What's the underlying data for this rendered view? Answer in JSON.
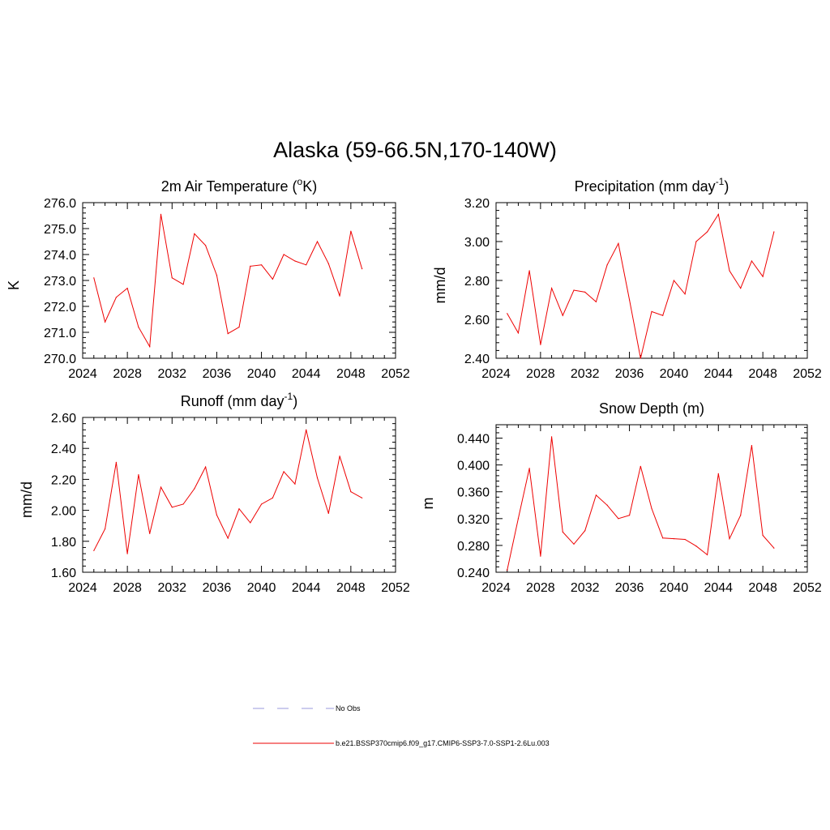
{
  "page": {
    "title": "Alaska (59-66.5N,170-140W)"
  },
  "legend": {
    "items": [
      {
        "label": "No Obs",
        "color": "#9999dd",
        "dash": true
      },
      {
        "label": "b.e21.BSSP370cmip6.f09_g17.CMIP6-SSP3-7.0-SSP1-2.6Lu.003",
        "color": "#ee0000",
        "dash": false
      }
    ]
  },
  "chart_data": [
    {
      "type": "line",
      "title": "2m Air Temperature (oK)",
      "title_parts": {
        "base": "2m Air Temperature (",
        "sup": "o",
        "tail": "K)"
      },
      "xlabel": "",
      "ylabel": "K",
      "xlim": [
        2024,
        2052
      ],
      "ylim": [
        270.0,
        276.0
      ],
      "xticks": [
        2024,
        2028,
        2032,
        2036,
        2040,
        2044,
        2048,
        2052
      ],
      "xtick_labels": [
        "2024",
        "2028",
        "2032",
        "2036",
        "2040",
        "2044",
        "2048",
        "2052"
      ],
      "yticks": [
        270.0,
        271.0,
        272.0,
        273.0,
        274.0,
        275.0,
        276.0
      ],
      "ytick_labels": [
        "270.0",
        "271.0",
        "272.0",
        "273.0",
        "274.0",
        "275.0",
        "276.0"
      ],
      "grid": false,
      "series": [
        {
          "color": "#ee0000",
          "x": [
            2025,
            2026,
            2027,
            2028,
            2029,
            2030,
            2031,
            2032,
            2033,
            2034,
            2035,
            2036,
            2037,
            2038,
            2039,
            2040,
            2041,
            2042,
            2043,
            2044,
            2045,
            2046,
            2047,
            2048,
            2049
          ],
          "y": [
            273.1,
            271.4,
            272.35,
            272.7,
            271.2,
            270.45,
            275.55,
            273.1,
            272.85,
            274.8,
            274.35,
            273.2,
            270.95,
            271.2,
            273.55,
            273.6,
            273.05,
            274.0,
            273.75,
            273.6,
            274.5,
            273.65,
            272.4,
            274.9,
            273.45
          ]
        }
      ]
    },
    {
      "type": "line",
      "title": "Precipitation (mm day-1)",
      "title_parts": {
        "base": "Precipitation (mm day",
        "sup": "-1",
        "tail": ")"
      },
      "xlabel": "",
      "ylabel": "mm/d",
      "xlim": [
        2024,
        2052
      ],
      "ylim": [
        2.4,
        3.2
      ],
      "xticks": [
        2024,
        2028,
        2032,
        2036,
        2040,
        2044,
        2048,
        2052
      ],
      "xtick_labels": [
        "2024",
        "2028",
        "2032",
        "2036",
        "2040",
        "2044",
        "2048",
        "2052"
      ],
      "yticks": [
        2.4,
        2.6,
        2.8,
        3.0,
        3.2
      ],
      "ytick_labels": [
        "2.40",
        "2.60",
        "2.80",
        "3.00",
        "3.20"
      ],
      "grid": false,
      "series": [
        {
          "color": "#ee0000",
          "x": [
            2025,
            2026,
            2027,
            2028,
            2029,
            2030,
            2031,
            2032,
            2033,
            2034,
            2035,
            2036,
            2037,
            2038,
            2039,
            2040,
            2041,
            2042,
            2043,
            2044,
            2045,
            2046,
            2047,
            2048,
            2049
          ],
          "y": [
            2.63,
            2.53,
            2.85,
            2.47,
            2.76,
            2.62,
            2.75,
            2.74,
            2.69,
            2.88,
            2.99,
            2.7,
            2.4,
            2.64,
            2.62,
            2.8,
            2.73,
            3.0,
            3.05,
            3.14,
            2.85,
            2.76,
            2.9,
            2.82,
            3.05
          ]
        }
      ]
    },
    {
      "type": "line",
      "title": "Runoff (mm day-1)",
      "title_parts": {
        "base": "Runoff (mm day",
        "sup": "-1",
        "tail": ")"
      },
      "xlabel": "",
      "ylabel": "mm/d",
      "xlim": [
        2024,
        2052
      ],
      "ylim": [
        1.6,
        2.6
      ],
      "xticks": [
        2024,
        2028,
        2032,
        2036,
        2040,
        2044,
        2048,
        2052
      ],
      "xtick_labels": [
        "2024",
        "2028",
        "2032",
        "2036",
        "2040",
        "2044",
        "2048",
        "2052"
      ],
      "yticks": [
        1.6,
        1.8,
        2.0,
        2.2,
        2.4,
        2.6
      ],
      "ytick_labels": [
        "1.60",
        "1.80",
        "2.00",
        "2.20",
        "2.40",
        "2.60"
      ],
      "grid": false,
      "series": [
        {
          "color": "#ee0000",
          "x": [
            2025,
            2026,
            2027,
            2028,
            2029,
            2030,
            2031,
            2032,
            2033,
            2034,
            2035,
            2036,
            2037,
            2038,
            2039,
            2040,
            2041,
            2042,
            2043,
            2044,
            2045,
            2046,
            2047,
            2048,
            2049
          ],
          "y": [
            1.74,
            1.88,
            2.31,
            1.72,
            2.23,
            1.85,
            2.15,
            2.02,
            2.04,
            2.14,
            2.28,
            1.97,
            1.82,
            2.01,
            1.92,
            2.04,
            2.08,
            2.25,
            2.17,
            2.52,
            2.21,
            1.98,
            2.35,
            2.12,
            2.08
          ]
        }
      ]
    },
    {
      "type": "line",
      "title": "Snow Depth (m)",
      "title_parts": {
        "base": "Snow Depth (m)",
        "sup": "",
        "tail": ""
      },
      "xlabel": "",
      "ylabel": "m",
      "xlim": [
        2024,
        2052
      ],
      "ylim": [
        0.24,
        0.46
      ],
      "xticks": [
        2024,
        2028,
        2032,
        2036,
        2040,
        2044,
        2048,
        2052
      ],
      "xtick_labels": [
        "2024",
        "2028",
        "2032",
        "2036",
        "2040",
        "2044",
        "2048",
        "2052"
      ],
      "yticks": [
        0.24,
        0.28,
        0.32,
        0.36,
        0.4,
        0.44
      ],
      "ytick_labels": [
        "0.240",
        "0.280",
        "0.320",
        "0.360",
        "0.400",
        "0.440"
      ],
      "grid": false,
      "series": [
        {
          "color": "#ee0000",
          "x": [
            2025,
            2026,
            2027,
            2028,
            2029,
            2030,
            2031,
            2032,
            2033,
            2034,
            2035,
            2036,
            2037,
            2038,
            2039,
            2040,
            2041,
            2042,
            2043,
            2044,
            2045,
            2046,
            2047,
            2048,
            2049
          ],
          "y": [
            0.243,
            0.32,
            0.395,
            0.264,
            0.442,
            0.3,
            0.282,
            0.302,
            0.355,
            0.34,
            0.32,
            0.325,
            0.398,
            0.335,
            0.291,
            0.29,
            0.289,
            0.279,
            0.266,
            0.387,
            0.29,
            0.325,
            0.429,
            0.295,
            0.276
          ]
        }
      ]
    }
  ]
}
